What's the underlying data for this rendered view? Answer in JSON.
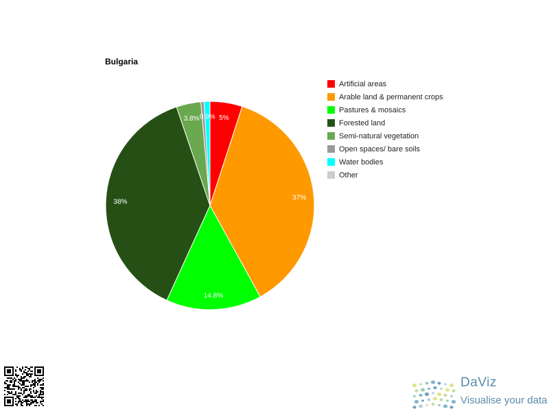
{
  "chart_data": {
    "type": "pie",
    "title": "Bulgaria",
    "series": [
      {
        "label": "Artificial areas",
        "value": 5,
        "color": "#ff0000",
        "data_label": "5%"
      },
      {
        "label": "Arable land & permanent crops",
        "value": 37,
        "color": "#ff9900",
        "data_label": "37%"
      },
      {
        "label": "Pastures & mosaics",
        "value": 14.8,
        "color": "#00ff00",
        "data_label": "14.8%"
      },
      {
        "label": "Forested land",
        "value": 38,
        "color": "#264f16",
        "data_label": "38%"
      },
      {
        "label": "Semi-natural vegetation",
        "value": 3.8,
        "color": "#6aa84f",
        "data_label": "3.8%"
      },
      {
        "label": "Open spaces/ bare soils",
        "value": 0.5,
        "color": "#999999",
        "data_label": ""
      },
      {
        "label": "Water bodies",
        "value": 0.9,
        "color": "#00ffff",
        "data_label": "0.9%"
      },
      {
        "label": "Other",
        "value": 0,
        "color": "#cccccc",
        "data_label": ""
      }
    ],
    "legend_position": "right"
  },
  "branding": {
    "name": "DaViz",
    "tagline": "Visualise your data"
  }
}
